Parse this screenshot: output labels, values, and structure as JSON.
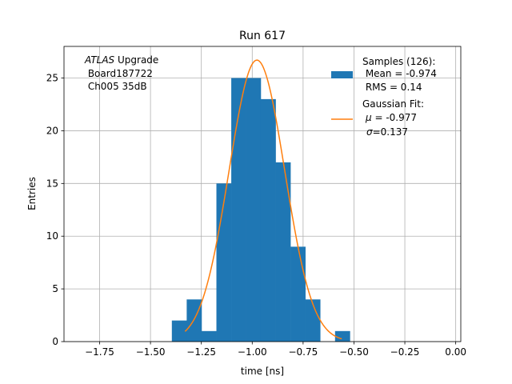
{
  "chart_data": {
    "type": "bar",
    "title": "Run 617",
    "xlabel": "time [ns]",
    "ylabel": "Entries",
    "xlim": [
      -1.925,
      0.025
    ],
    "ylim": [
      0,
      28
    ],
    "x_ticks": [
      -1.75,
      -1.5,
      -1.25,
      -1.0,
      -0.75,
      -0.5,
      -0.25,
      0.0
    ],
    "x_tick_labels": [
      "−1.75",
      "−1.50",
      "−1.25",
      "−1.00",
      "−0.75",
      "−0.50",
      "−0.25",
      "0.00"
    ],
    "y_ticks": [
      0,
      5,
      10,
      15,
      20,
      25
    ],
    "y_tick_labels": [
      "0",
      "5",
      "10",
      "15",
      "20",
      "25"
    ],
    "grid": true,
    "histogram": {
      "name": "Samples (126):",
      "color": "#1f77b4",
      "bin_edges": [
        -1.395,
        -1.322,
        -1.249,
        -1.176,
        -1.103,
        -1.03,
        -0.958,
        -0.885,
        -0.812,
        -0.739,
        -0.666,
        -0.593,
        -0.52
      ],
      "counts": [
        2,
        4,
        1,
        15,
        25,
        25,
        23,
        17,
        9,
        4,
        0,
        1
      ]
    },
    "fit": {
      "name": "Gaussian Fit:",
      "color": "#ff7f0e",
      "model": "gaussian",
      "amplitude": 26.7,
      "mu": -0.977,
      "sigma": 0.137,
      "x_range": [
        -1.33,
        -0.56
      ]
    },
    "legend": {
      "placement": "top-right",
      "samples_title": "Samples (126):",
      "samples_mean": " Mean = -0.974",
      "samples_rms": " RMS = 0.14",
      "fit_title": "Gaussian Fit:",
      "fit_mu_label": "μ",
      "fit_mu_value": " = -0.977",
      "fit_sigma_label": "σ",
      "fit_sigma_value": "=0.137"
    },
    "annotation": {
      "experiment_italic": "ATLAS",
      "experiment_rest": " Upgrade",
      "board": " Board187722",
      "channel": " Ch005 35dB"
    }
  }
}
